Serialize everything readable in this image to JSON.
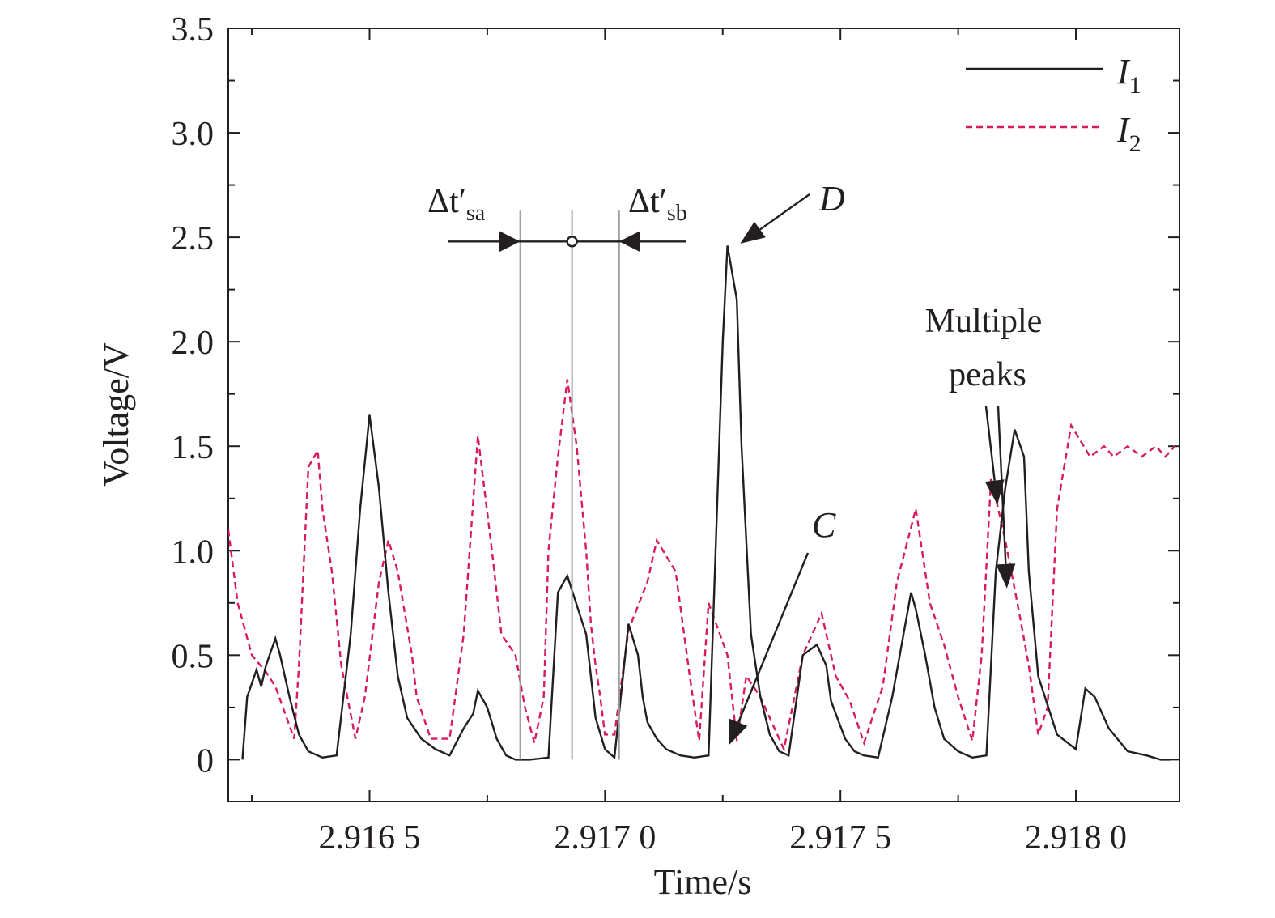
{
  "chart_data": {
    "type": "line",
    "xlabel": "Time/s",
    "ylabel": "Voltage/V",
    "xlim": [
      2.9162,
      2.91822
    ],
    "ylim": [
      -0.2,
      3.5
    ],
    "xticks": [
      {
        "value": 2.9165,
        "label": "2.916 5"
      },
      {
        "value": 2.917,
        "label": "2.917 0"
      },
      {
        "value": 2.9175,
        "label": "2.917 5"
      },
      {
        "value": 2.918,
        "label": "2.918 0"
      }
    ],
    "yticks": [
      {
        "value": 0,
        "label": "0"
      },
      {
        "value": 0.5,
        "label": "0.5"
      },
      {
        "value": 1.0,
        "label": "1.0"
      },
      {
        "value": 1.5,
        "label": "1.5"
      },
      {
        "value": 2.0,
        "label": "2.0"
      },
      {
        "value": 2.5,
        "label": "2.5"
      },
      {
        "value": 3.0,
        "label": "3.0"
      },
      {
        "value": 3.5,
        "label": "3.5"
      }
    ],
    "legend_position": "top-right",
    "series": [
      {
        "name": "I",
        "name_sub": "1",
        "color": "#231f20",
        "style": "solid",
        "x": [
          2.91623,
          2.91624,
          2.91626,
          2.91627,
          2.91628,
          2.9163,
          2.91631,
          2.91633,
          2.91635,
          2.91637,
          2.9164,
          2.91643,
          2.91646,
          2.91648,
          2.9165,
          2.91652,
          2.91654,
          2.91656,
          2.91658,
          2.91661,
          2.91664,
          2.91667,
          2.9167,
          2.91672,
          2.91673,
          2.91675,
          2.91677,
          2.91679,
          2.91681,
          2.91684,
          2.91688,
          2.9169,
          2.91692,
          2.91696,
          2.91698,
          2.917,
          2.91702,
          2.91705,
          2.91707,
          2.91708,
          2.91709,
          2.91711,
          2.91713,
          2.91716,
          2.91719,
          2.91722,
          2.91725,
          2.91726,
          2.91728,
          2.91729,
          2.91731,
          2.91733,
          2.91735,
          2.91737,
          2.91739,
          2.91742,
          2.91745,
          2.91747,
          2.91748,
          2.91751,
          2.91753,
          2.91755,
          2.91758,
          2.91761,
          2.91765,
          2.91766,
          2.91768,
          2.9177,
          2.91772,
          2.91775,
          2.91778,
          2.91781,
          2.91783,
          2.91784,
          2.91785,
          2.91787,
          2.91789,
          2.9179,
          2.91792,
          2.91796,
          2.918,
          2.91802,
          2.91804,
          2.91807,
          2.91811,
          2.91815,
          2.91818,
          2.9182
        ],
        "y": [
          0,
          0.3,
          0.43,
          0.35,
          0.45,
          0.58,
          0.5,
          0.3,
          0.12,
          0.04,
          0.01,
          0.02,
          0.6,
          1.2,
          1.65,
          1.3,
          0.8,
          0.4,
          0.2,
          0.1,
          0.05,
          0.02,
          0.15,
          0.22,
          0.33,
          0.25,
          0.1,
          0.02,
          0,
          0,
          0.01,
          0.8,
          0.88,
          0.6,
          0.2,
          0.05,
          0.01,
          0.65,
          0.5,
          0.3,
          0.18,
          0.1,
          0.05,
          0.02,
          0.01,
          0.02,
          2.0,
          2.46,
          2.2,
          1.5,
          0.6,
          0.3,
          0.12,
          0.04,
          0.02,
          0.5,
          0.55,
          0.45,
          0.28,
          0.1,
          0.04,
          0.02,
          0.01,
          0.3,
          0.8,
          0.72,
          0.5,
          0.25,
          0.1,
          0.04,
          0.01,
          0.02,
          0.9,
          1.1,
          1.3,
          1.58,
          1.45,
          0.9,
          0.4,
          0.12,
          0.05,
          0.34,
          0.3,
          0.15,
          0.04,
          0.02,
          0,
          0
        ],
        "units": {
          "x": "s",
          "y": "V"
        }
      },
      {
        "name": "I",
        "name_sub": "2",
        "color": "#d81b60",
        "style": "dashed",
        "x": [
          2.9162,
          2.91622,
          2.91625,
          2.91628,
          2.9163,
          2.91634,
          2.91635,
          2.91637,
          2.91639,
          2.9164,
          2.91642,
          2.91644,
          2.91647,
          2.91649,
          2.91652,
          2.91654,
          2.91656,
          2.91659,
          2.9166,
          2.91663,
          2.91667,
          2.9167,
          2.91673,
          2.91676,
          2.91678,
          2.91681,
          2.91683,
          2.91685,
          2.91687,
          2.91688,
          2.9169,
          2.91692,
          2.91694,
          2.91696,
          2.91697,
          2.91698,
          2.91699,
          2.917,
          2.91702,
          2.91705,
          2.91709,
          2.91711,
          2.91715,
          2.91718,
          2.9172,
          2.91722,
          2.91726,
          2.91728,
          2.9173,
          2.91733,
          2.91735,
          2.91738,
          2.91742,
          2.91746,
          2.91749,
          2.91752,
          2.91755,
          2.91759,
          2.91762,
          2.91766,
          2.91769,
          2.91772,
          2.91775,
          2.91778,
          2.9178,
          2.91782,
          2.91785,
          2.91788,
          2.9179,
          2.91792,
          2.91794,
          2.91796,
          2.91799,
          2.91803,
          2.91806,
          2.91808,
          2.91811,
          2.91814,
          2.91817,
          2.91819,
          2.91821
        ],
        "y": [
          1.1,
          0.75,
          0.5,
          0.42,
          0.35,
          0.1,
          0.45,
          1.4,
          1.48,
          1.2,
          0.9,
          0.45,
          0.1,
          0.3,
          0.85,
          1.05,
          0.9,
          0.5,
          0.3,
          0.1,
          0.1,
          0.6,
          1.55,
          1.0,
          0.6,
          0.5,
          0.25,
          0.08,
          0.3,
          1.0,
          1.45,
          1.82,
          1.5,
          1.0,
          0.65,
          0.45,
          0.3,
          0.12,
          0.12,
          0.62,
          0.85,
          1.05,
          0.9,
          0.4,
          0.09,
          0.75,
          0.5,
          0.09,
          0.4,
          0.3,
          0.2,
          0.05,
          0.5,
          0.7,
          0.4,
          0.28,
          0.08,
          0.35,
          0.85,
          1.2,
          0.75,
          0.55,
          0.3,
          0.09,
          0.5,
          1.35,
          1.05,
          0.7,
          0.45,
          0.12,
          0.25,
          1.2,
          1.6,
          1.45,
          1.5,
          1.45,
          1.5,
          1.45,
          1.5,
          1.45,
          1.5
        ],
        "units": {
          "x": "s",
          "y": "V"
        }
      }
    ],
    "annotations": {
      "D": "D",
      "C": "C",
      "multiple_peaks_line1": "Multiple",
      "multiple_peaks_line2": "peaks",
      "dt_sa_main": "Δt′",
      "dt_sa_sub": "sa",
      "dt_sb_main": "Δt′",
      "dt_sb_sub": "sb"
    },
    "markers": {
      "vertical_lines_x": [
        2.91682,
        2.91693,
        2.91703
      ],
      "dt_bracket_y": 2.48,
      "D_target": {
        "x": 2.91727,
        "y": 2.47
      },
      "C_target": {
        "x": 2.91725,
        "y": 0.04
      },
      "multi_peak_targets": [
        {
          "x": 2.91783,
          "y": 1.22
        },
        {
          "x": 2.91785,
          "y": 0.82
        }
      ]
    }
  }
}
